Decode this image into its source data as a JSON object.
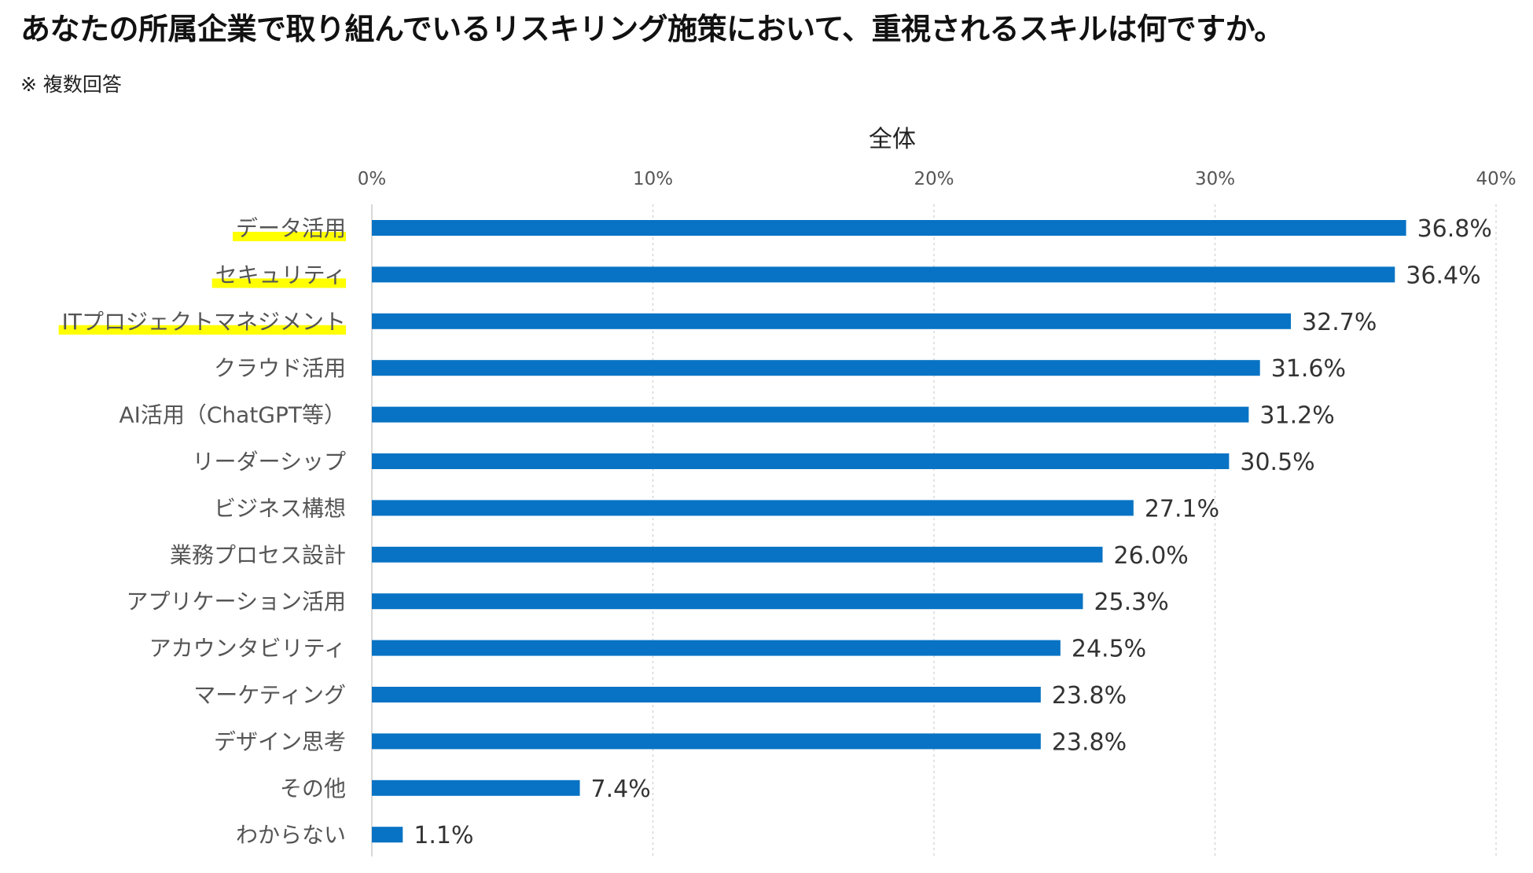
{
  "title": "あなたの所属企業で取り組んでいるリスキリング施策において、重視されるスキルは何ですか。",
  "note": "※ 複数回答",
  "chart_data": {
    "type": "bar",
    "orientation": "horizontal",
    "title": "全体",
    "xlabel": "",
    "ylabel": "",
    "xlim": [
      0,
      40
    ],
    "ticks": [
      0,
      10,
      20,
      30,
      40
    ],
    "tick_labels": [
      "0%",
      "10%",
      "20%",
      "30%",
      "40%"
    ],
    "grid": true,
    "bar_color": "#0873c4",
    "highlight_color": "#ffff00",
    "highlighted": [
      "データ活用",
      "セキュリティ",
      "ITプロジェクトマネジメント"
    ],
    "categories": [
      "データ活用",
      "セキュリティ",
      "ITプロジェクトマネジメント",
      "クラウド活用",
      "AI活用（ChatGPT等）",
      "リーダーシップ",
      "ビジネス構想",
      "業務プロセス設計",
      "アプリケーション活用",
      "アカウンタビリティ",
      "マーケティング",
      "デザイン思考",
      "その他",
      "わからない"
    ],
    "values": [
      36.8,
      36.4,
      32.7,
      31.6,
      31.2,
      30.5,
      27.1,
      26.0,
      25.3,
      24.5,
      23.8,
      23.8,
      7.4,
      1.1
    ],
    "value_labels": [
      "36.8%",
      "36.4%",
      "32.7%",
      "31.6%",
      "31.2%",
      "30.5%",
      "27.1%",
      "26.0%",
      "25.3%",
      "24.5%",
      "23.8%",
      "23.8%",
      "7.4%",
      "1.1%"
    ]
  }
}
